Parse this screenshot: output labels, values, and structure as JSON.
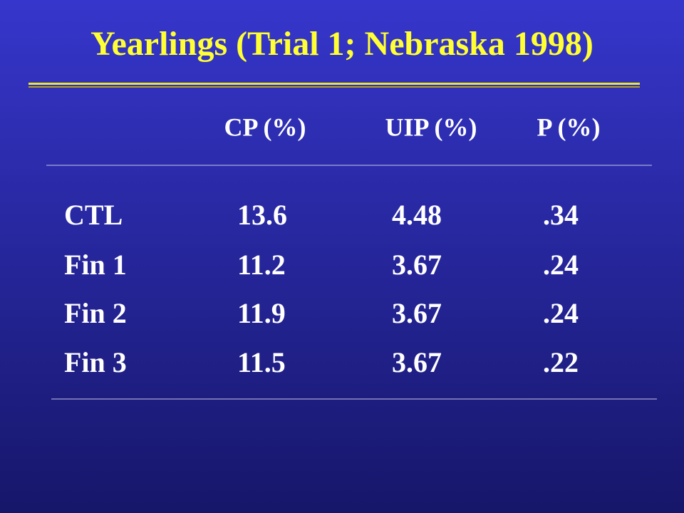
{
  "title": "Yearlings (Trial 1; Nebraska 1998)",
  "table": {
    "header": [
      "CP (%)",
      "UIP (%)",
      "P (%)"
    ],
    "rows": [
      [
        "CTL",
        "13.6",
        "4.48",
        ".34"
      ],
      [
        "Fin 1",
        "11.2",
        "3.67",
        ".24"
      ],
      [
        "Fin 2",
        "11.9",
        "3.67",
        ".24"
      ],
      [
        "Fin 3",
        "11.5",
        "3.67",
        ".22"
      ]
    ]
  }
}
